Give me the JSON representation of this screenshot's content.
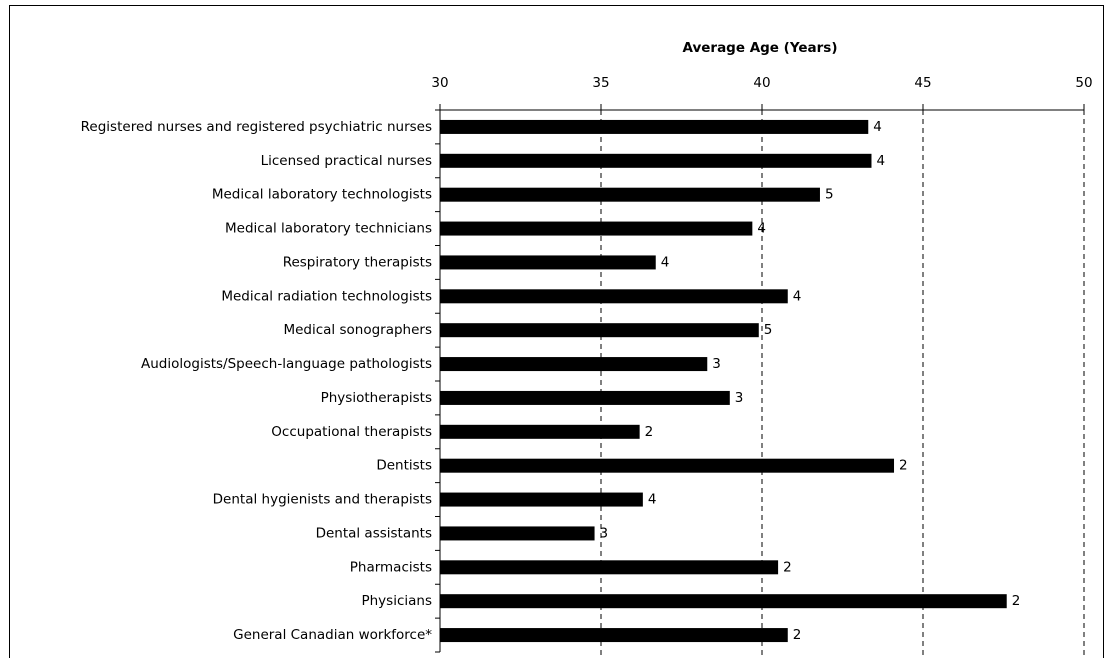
{
  "chart_data": {
    "type": "bar",
    "orientation": "horizontal",
    "x_label": "Average Age (Years)",
    "categories": [
      "Registered nurses and registered psychiatric nurses",
      "Licensed practical nurses",
      "Medical laboratory technologists",
      "Medical laboratory technicians",
      "Respiratory therapists",
      "Medical radiation technologists",
      "Medical sonographers",
      "Audiologists/Speech-language pathologists",
      "Physiotherapists",
      "Occupational therapists",
      "Dentists",
      "Dental hygienists and therapists",
      "Dental assistants",
      "Pharmacists",
      "Physicians",
      "General Canadian workforce*"
    ],
    "values": [
      43.3,
      43.4,
      41.8,
      39.7,
      36.7,
      40.8,
      39.9,
      38.3,
      39.0,
      36.2,
      44.1,
      36.3,
      34.8,
      40.5,
      47.6,
      40.8
    ],
    "bar_labels": [
      4,
      4,
      5,
      4,
      4,
      4,
      5,
      3,
      3,
      2,
      2,
      4,
      3,
      2,
      2,
      2
    ],
    "color": "#000000",
    "xlim": [
      30,
      50
    ],
    "xticks": [
      30,
      35,
      40,
      45,
      50
    ],
    "grid": true
  }
}
